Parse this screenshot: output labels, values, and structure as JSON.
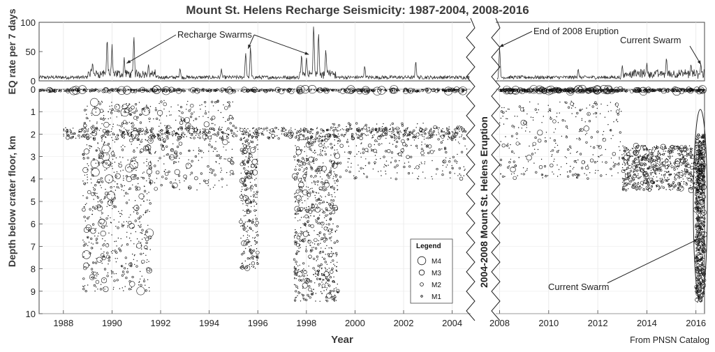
{
  "chart_data": {
    "type": "scatter",
    "title": "Mount St. Helens Recharge Seismicity: 1987-2004, 2008-2016",
    "credit": "From PNSN Catalog",
    "gap_label": "2004-2008 Mount St. Helens Eruption",
    "xlabel": "Year",
    "xlim": [
      1987,
      2016.35
    ],
    "gap": [
      2004.7,
      2007.9
    ],
    "x_ticks": [
      "1988",
      "1990",
      "1992",
      "1994",
      "1996",
      "1998",
      "2000",
      "2002",
      "2004",
      "2008",
      "2010",
      "2012",
      "2014",
      "2016"
    ],
    "rate_panel": {
      "ylabel": "EQ rate per 7 days",
      "ylim": [
        0,
        100
      ],
      "y_ticks": [
        "0",
        "50",
        "100"
      ],
      "peaks": [
        {
          "x": 1989.2,
          "y": 30
        },
        {
          "x": 1989.8,
          "y": 75
        },
        {
          "x": 1990.0,
          "y": 60
        },
        {
          "x": 1990.5,
          "y": 40
        },
        {
          "x": 1990.9,
          "y": 80
        },
        {
          "x": 1991.5,
          "y": 28
        },
        {
          "x": 1992.8,
          "y": 22
        },
        {
          "x": 1994.5,
          "y": 18
        },
        {
          "x": 1995.5,
          "y": 50
        },
        {
          "x": 1995.7,
          "y": 58
        },
        {
          "x": 1997.8,
          "y": 48
        },
        {
          "x": 1998.0,
          "y": 42
        },
        {
          "x": 1998.3,
          "y": 100
        },
        {
          "x": 1998.5,
          "y": 85
        },
        {
          "x": 1998.8,
          "y": 55
        },
        {
          "x": 2000.4,
          "y": 25
        },
        {
          "x": 2002.5,
          "y": 35
        },
        {
          "x": 2008.0,
          "y": 60
        },
        {
          "x": 2011.2,
          "y": 20
        },
        {
          "x": 2013.0,
          "y": 25
        },
        {
          "x": 2014.0,
          "y": 30
        },
        {
          "x": 2014.8,
          "y": 40
        },
        {
          "x": 2015.8,
          "y": 28
        },
        {
          "x": 2016.2,
          "y": 30
        }
      ],
      "annotations": [
        {
          "text": "Recharge Swarms",
          "arrows_to": [
            [
              1990.6,
              30
            ],
            [
              1995.6,
              55
            ],
            [
              1998.1,
              45
            ]
          ]
        },
        {
          "text": "End of 2008 Eruption",
          "arrows_to": [
            [
              2008.0,
              58
            ]
          ]
        },
        {
          "text": "Current Swarm",
          "arrows_to": [
            [
              2016.2,
              28
            ]
          ]
        }
      ]
    },
    "depth_panel": {
      "ylabel": "Depth below crater floor, km",
      "ylim": [
        0,
        10
      ],
      "y_ticks": [
        "0",
        "1",
        "2",
        "3",
        "4",
        "5",
        "6",
        "7",
        "8",
        "9",
        "10"
      ],
      "clusters": [
        {
          "x_range": [
            1987.0,
            2004.6
          ],
          "depth_range": [
            0.0,
            0.1
          ],
          "density": "high",
          "magnitude_range": [
            1,
            4
          ]
        },
        {
          "x_range": [
            2008.0,
            2016.35
          ],
          "depth_range": [
            0.0,
            0.1
          ],
          "density": "high",
          "magnitude_range": [
            1,
            4
          ]
        },
        {
          "x_range": [
            1988.8,
            1991.6
          ],
          "depth_range": [
            0.5,
            9.0
          ],
          "density": "high",
          "magnitude_range": [
            1,
            4
          ]
        },
        {
          "x_range": [
            1991.5,
            1995.0
          ],
          "depth_range": [
            0.5,
            4.5
          ],
          "density": "medium",
          "magnitude_range": [
            1,
            3
          ]
        },
        {
          "x_range": [
            1988.0,
            2004.5
          ],
          "depth_range": [
            1.7,
            2.2
          ],
          "density": "high",
          "magnitude_range": [
            1,
            2
          ]
        },
        {
          "x_range": [
            1995.3,
            1996.0
          ],
          "depth_range": [
            2.0,
            8.0
          ],
          "density": "medium",
          "magnitude_range": [
            1,
            3
          ]
        },
        {
          "x_range": [
            1997.5,
            1999.3
          ],
          "depth_range": [
            2.0,
            9.5
          ],
          "density": "high",
          "magnitude_range": [
            1,
            3
          ]
        },
        {
          "x_range": [
            1999.0,
            2004.6
          ],
          "depth_range": [
            1.5,
            4.0
          ],
          "density": "medium",
          "magnitude_range": [
            1,
            2
          ]
        },
        {
          "x_range": [
            2008.0,
            2013.0
          ],
          "depth_range": [
            0.5,
            4.0
          ],
          "density": "medium",
          "magnitude_range": [
            1,
            3
          ]
        },
        {
          "x_range": [
            2013.0,
            2016.3
          ],
          "depth_range": [
            2.5,
            4.5
          ],
          "density": "high",
          "magnitude_range": [
            1,
            3
          ]
        },
        {
          "x_range": [
            2016.0,
            2016.35
          ],
          "depth_range": [
            2.0,
            9.5
          ],
          "density": "high",
          "magnitude_range": [
            1,
            3
          ]
        }
      ],
      "annotations": [
        {
          "text": "Current Swarm",
          "arrows_to": [
            [
              2015.9,
              6.5
            ]
          ]
        }
      ]
    },
    "legend": {
      "title": "Legend",
      "placement": "bottom-right of pre-2004 section",
      "items": [
        {
          "label": "M4",
          "magnitude": 4
        },
        {
          "label": "M3",
          "magnitude": 3
        },
        {
          "label": "M2",
          "magnitude": 2
        },
        {
          "label": "M1",
          "magnitude": 1
        }
      ]
    }
  }
}
